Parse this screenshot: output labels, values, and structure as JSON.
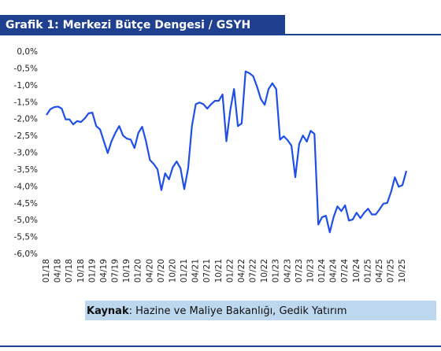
{
  "chart_data": {
    "type": "line",
    "title": "Grafik 1: Merkezi Bütçe Dengesi / GSYH",
    "source": {
      "label": "Kaynak",
      "text": ": Hazine ve Maliye Bakanlığı, Gedik Yatırım"
    },
    "color": "#1f4fe6",
    "grid": false,
    "ylim": [
      -6,
      0
    ],
    "yticks": [
      {
        "value": 0,
        "label": "0,0%"
      },
      {
        "value": -0.5,
        "label": "-0,5%"
      },
      {
        "value": -1,
        "label": "-1,0%"
      },
      {
        "value": -1.5,
        "label": "-1,5%"
      },
      {
        "value": -2,
        "label": "-2,0%"
      },
      {
        "value": -2.5,
        "label": "-2,5%"
      },
      {
        "value": -3,
        "label": "-3,0%"
      },
      {
        "value": -3.5,
        "label": "-3,5%"
      },
      {
        "value": -4,
        "label": "-4,0%"
      },
      {
        "value": -4.5,
        "label": "-4,5%"
      },
      {
        "value": -5,
        "label": "-5,0%"
      },
      {
        "value": -5.5,
        "label": "-5,5%"
      },
      {
        "value": -6,
        "label": "-6,0%"
      }
    ],
    "categories": [
      "01/18",
      null,
      null,
      "04/18",
      null,
      null,
      "07/18",
      null,
      null,
      "10/18",
      null,
      null,
      "01/19",
      null,
      null,
      "04/19",
      null,
      null,
      "07/19",
      null,
      null,
      "10/19",
      null,
      null,
      "01/20",
      null,
      null,
      "04/20",
      null,
      null,
      "07/20",
      null,
      null,
      "10/20",
      null,
      null,
      "01/21",
      null,
      null,
      "04/21",
      null,
      null,
      "07/21",
      null,
      null,
      "10/21",
      null,
      null,
      "01/22",
      null,
      null,
      "04/22",
      null,
      null,
      "07/22",
      null,
      null,
      "10/22",
      null,
      null,
      "01/23",
      null,
      null,
      "04/23",
      null,
      null,
      "07/23",
      null,
      null,
      "10/23",
      null,
      null,
      "01/24",
      null,
      null,
      "04/24",
      null,
      null,
      "07/24",
      null,
      null,
      "10/24",
      null,
      null,
      "01/25",
      null,
      null,
      "04/25",
      null,
      null,
      "07/25",
      null,
      null,
      "10/25",
      null
    ],
    "values": [
      -1.87,
      -1.7,
      -1.64,
      -1.62,
      -1.68,
      -2.0,
      -2.0,
      -2.15,
      -2.05,
      -2.08,
      -1.97,
      -1.82,
      -1.8,
      -2.2,
      -2.3,
      -2.65,
      -3.0,
      -2.65,
      -2.4,
      -2.2,
      -2.48,
      -2.57,
      -2.6,
      -2.85,
      -2.4,
      -2.22,
      -2.65,
      -3.2,
      -3.32,
      -3.48,
      -4.1,
      -3.6,
      -3.78,
      -3.42,
      -3.25,
      -3.45,
      -4.07,
      -3.45,
      -2.2,
      -1.55,
      -1.5,
      -1.55,
      -1.68,
      -1.55,
      -1.45,
      -1.45,
      -1.26,
      -2.65,
      -1.73,
      -1.1,
      -2.2,
      -2.12,
      -0.58,
      -0.63,
      -0.72,
      -1.03,
      -1.4,
      -1.57,
      -1.1,
      -0.93,
      -1.1,
      -2.6,
      -2.5,
      -2.62,
      -2.78,
      -3.72,
      -2.73,
      -2.48,
      -2.66,
      -2.34,
      -2.43,
      -5.12,
      -4.9,
      -4.86,
      -5.35,
      -4.9,
      -4.58,
      -4.72,
      -4.55,
      -5.0,
      -4.97,
      -4.77,
      -4.93,
      -4.77,
      -4.65,
      -4.82,
      -4.82,
      -4.67,
      -4.5,
      -4.48,
      -4.15,
      -3.72,
      -4.0,
      -3.95,
      -3.53
    ]
  }
}
